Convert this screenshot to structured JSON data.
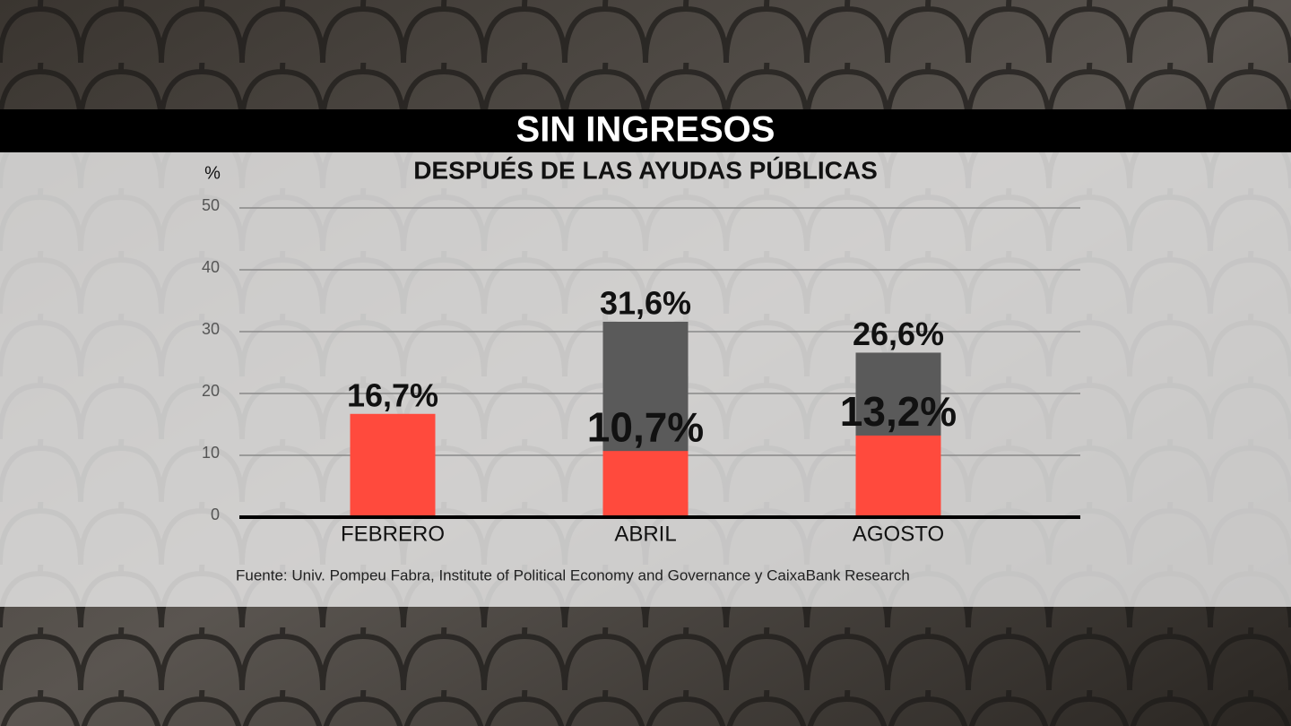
{
  "chart_data": {
    "type": "bar",
    "title": "SIN INGRESOS",
    "subtitle": "DESPUÉS DE LAS AYUDAS PÚBLICAS",
    "ylabel": "%",
    "categories": [
      "FEBRERO",
      "ABRIL",
      "AGOSTO"
    ],
    "series": [
      {
        "color": "#ff4a3d",
        "values": [
          16.7,
          10.7,
          13.2
        ],
        "value_labels": [
          "16,7%",
          "10,7%",
          "13,2%"
        ]
      },
      {
        "color": "#5a5a5a",
        "values": [
          null,
          31.6,
          26.6
        ],
        "value_labels": [
          null,
          "31,6%",
          "26,6%"
        ]
      }
    ],
    "ylim": [
      0,
      50
    ],
    "yticks": [
      0,
      10,
      20,
      30,
      40,
      50
    ],
    "grid": true,
    "source": "Fuente: Univ. Pompeu Fabra, Institute of Political Economy and Governance y CaixaBank Research"
  }
}
